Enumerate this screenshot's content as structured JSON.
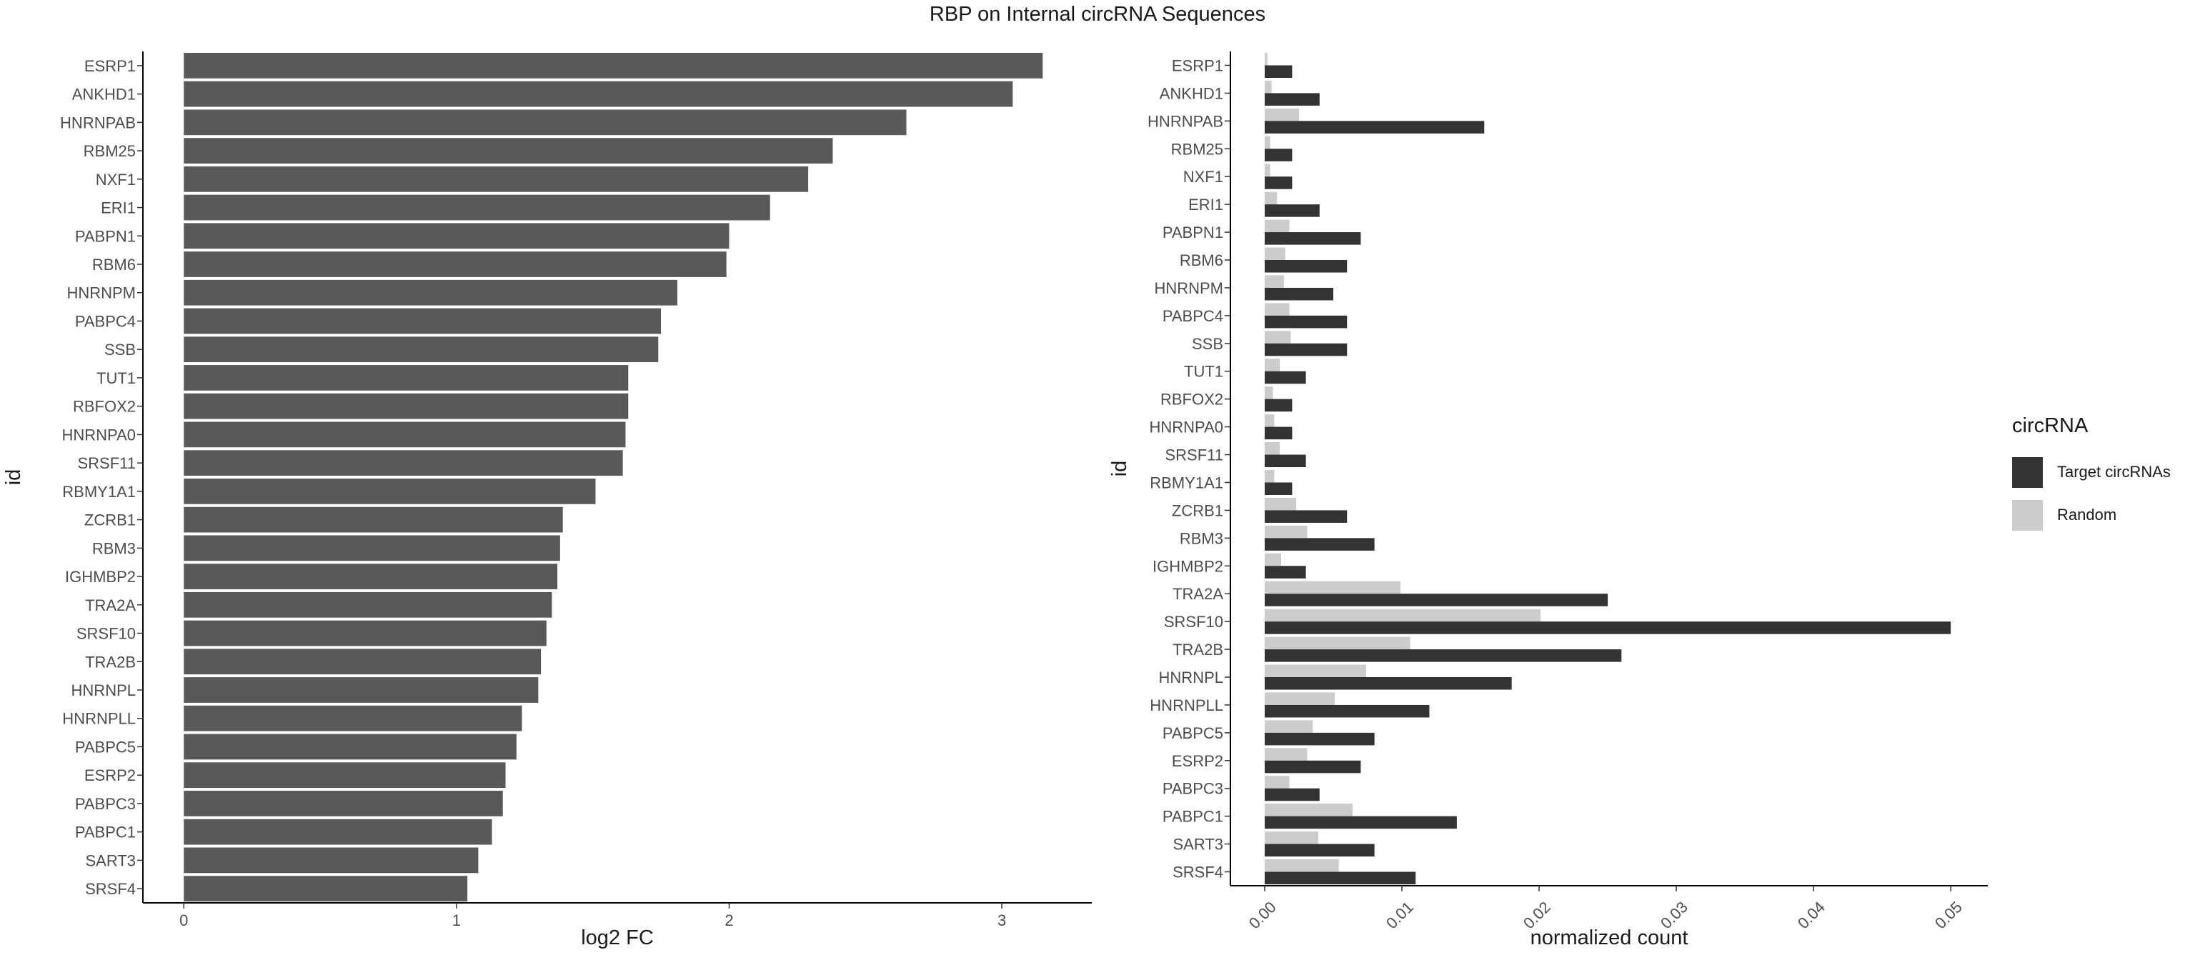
{
  "title": "RBP on Internal circRNA Sequences",
  "colors": {
    "bar_left": "#595959",
    "target": "#333333",
    "random": "#cccccc",
    "axis": "#000000",
    "text": "#4d4d4d"
  },
  "legend": {
    "title": "circRNA",
    "items": [
      {
        "label": "Target circRNAs",
        "color": "#333333"
      },
      {
        "label": "Random",
        "color": "#cccccc"
      }
    ]
  },
  "chart_data": [
    {
      "type": "bar",
      "orientation": "horizontal",
      "xlabel": "log2 FC",
      "ylabel": "id",
      "xlim": [
        -0.15,
        3.33
      ],
      "xticks": [
        "0",
        "1",
        "2",
        "3"
      ],
      "categories": [
        "ESRP1",
        "ANKHD1",
        "HNRNPAB",
        "RBM25",
        "NXF1",
        "ERI1",
        "PABPN1",
        "RBM6",
        "HNRNPM",
        "PABPC4",
        "SSB",
        "TUT1",
        "RBFOX2",
        "HNRNPA0",
        "SRSF11",
        "RBMY1A1",
        "ZCRB1",
        "RBM3",
        "IGHMBP2",
        "TRA2A",
        "SRSF10",
        "TRA2B",
        "HNRNPL",
        "HNRNPLL",
        "PABPC5",
        "ESRP2",
        "PABPC3",
        "PABPC1",
        "SART3",
        "SRSF4"
      ],
      "values": [
        3.15,
        3.04,
        2.65,
        2.38,
        2.29,
        2.15,
        2.0,
        1.99,
        1.81,
        1.75,
        1.74,
        1.63,
        1.63,
        1.62,
        1.61,
        1.51,
        1.39,
        1.38,
        1.37,
        1.35,
        1.33,
        1.31,
        1.3,
        1.24,
        1.22,
        1.18,
        1.17,
        1.13,
        1.08,
        1.04
      ]
    },
    {
      "type": "bar",
      "orientation": "horizontal",
      "grouped": true,
      "xlabel": "normalized count",
      "ylabel": "id",
      "xlim": [
        -0.0025,
        0.0527
      ],
      "xticks": [
        "0.00",
        "0.01",
        "0.02",
        "0.03",
        "0.04",
        "0.05"
      ],
      "categories": [
        "ESRP1",
        "ANKHD1",
        "HNRNPAB",
        "RBM25",
        "NXF1",
        "ERI1",
        "PABPN1",
        "RBM6",
        "HNRNPM",
        "PABPC4",
        "SSB",
        "TUT1",
        "RBFOX2",
        "HNRNPA0",
        "SRSF11",
        "RBMY1A1",
        "ZCRB1",
        "RBM3",
        "IGHMBP2",
        "TRA2A",
        "SRSF10",
        "TRA2B",
        "HNRNPL",
        "HNRNPLL",
        "PABPC5",
        "ESRP2",
        "PABPC3",
        "PABPC1",
        "SART3",
        "SRSF4"
      ],
      "series": [
        {
          "name": "Target circRNAs",
          "values": [
            0.002,
            0.004,
            0.016,
            0.002,
            0.002,
            0.004,
            0.007,
            0.006,
            0.005,
            0.006,
            0.006,
            0.003,
            0.002,
            0.002,
            0.003,
            0.002,
            0.006,
            0.008,
            0.003,
            0.025,
            0.05,
            0.026,
            0.018,
            0.012,
            0.008,
            0.007,
            0.004,
            0.014,
            0.008,
            0.011
          ]
        },
        {
          "name": "Random",
          "values": [
            0.0002,
            0.0005,
            0.0025,
            0.0004,
            0.0004,
            0.0009,
            0.0018,
            0.0015,
            0.0014,
            0.0018,
            0.0019,
            0.0011,
            0.0006,
            0.0007,
            0.0011,
            0.0007,
            0.0023,
            0.0031,
            0.0012,
            0.0099,
            0.0201,
            0.0106,
            0.0074,
            0.0051,
            0.0035,
            0.0031,
            0.0018,
            0.0064,
            0.0039,
            0.0054
          ]
        }
      ]
    }
  ]
}
